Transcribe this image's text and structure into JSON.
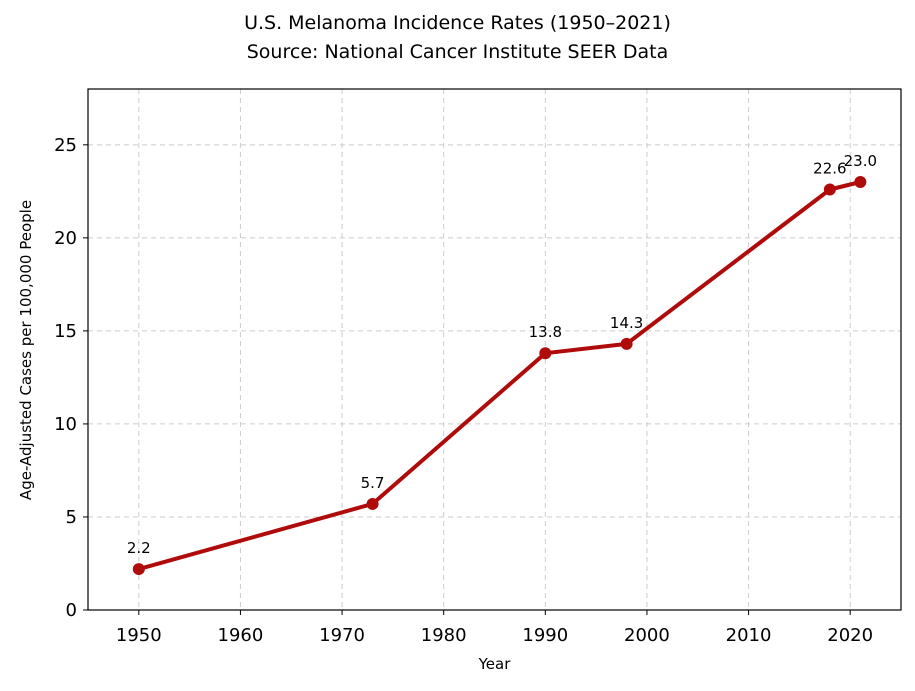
{
  "chart_data": {
    "type": "line",
    "title": "U.S. Melanoma Incidence Rates (1950–2021)",
    "subtitle": "Source: National Cancer Institute SEER Data",
    "xlabel": "Year",
    "ylabel": "Age-Adjusted Cases per 100,000 People",
    "x": [
      1950,
      1973,
      1990,
      1998,
      2018,
      2021
    ],
    "series": [
      {
        "values": [
          2.2,
          5.7,
          13.8,
          14.3,
          22.6,
          23.0
        ]
      }
    ],
    "data_labels": [
      "2.2",
      "5.7",
      "13.8",
      "14.3",
      "22.6",
      "23.0"
    ],
    "xlim": [
      1945,
      2025
    ],
    "ylim": [
      0,
      28
    ],
    "xticks": [
      1950,
      1960,
      1970,
      1980,
      1990,
      2000,
      2010,
      2020
    ],
    "yticks": [
      0,
      5,
      10,
      15,
      20,
      25
    ],
    "grid": true,
    "line_color": "#b00b0b"
  }
}
